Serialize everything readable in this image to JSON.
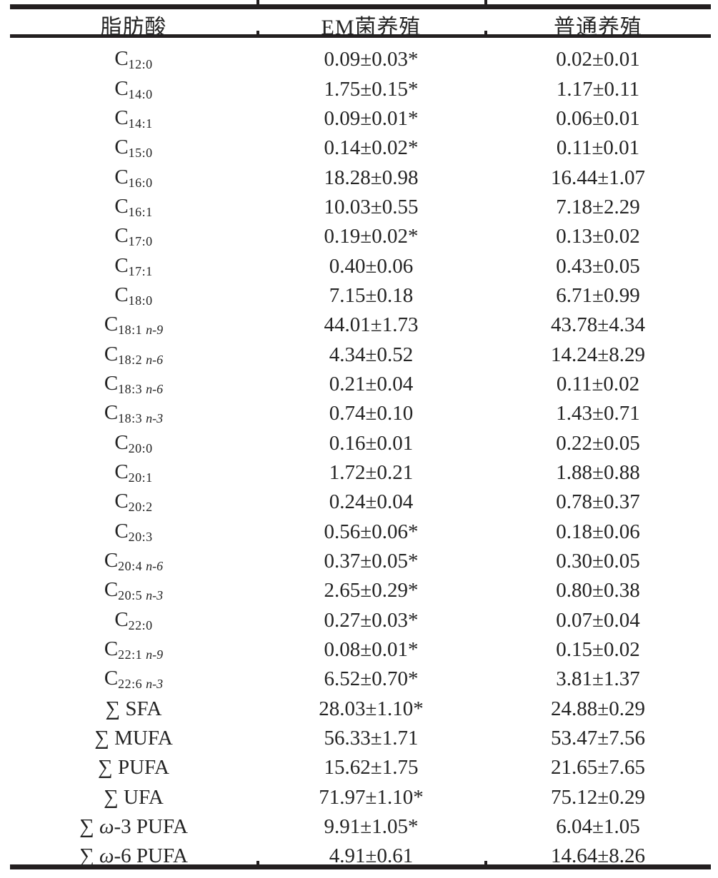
{
  "page": {
    "background": "#ffffff",
    "ink": "#242424",
    "rule_color": "#231f20"
  },
  "table": {
    "columns": [
      {
        "key": "label",
        "header": "脂肪酸"
      },
      {
        "key": "em",
        "header": "EM菌养殖"
      },
      {
        "key": "normal",
        "header": "普通养殖"
      }
    ],
    "significance_marker": "*",
    "rows": [
      {
        "label": [
          {
            "t": "C"
          },
          {
            "t": "12:0",
            "s": "sub"
          }
        ],
        "em": "0.09±0.03*",
        "normal": "0.02±0.01"
      },
      {
        "label": [
          {
            "t": "C"
          },
          {
            "t": "14:0",
            "s": "sub"
          }
        ],
        "em": "1.75±0.15*",
        "normal": "1.17±0.11"
      },
      {
        "label": [
          {
            "t": "C"
          },
          {
            "t": "14:1",
            "s": "sub"
          }
        ],
        "em": "0.09±0.01*",
        "normal": "0.06±0.01"
      },
      {
        "label": [
          {
            "t": "C"
          },
          {
            "t": "15:0",
            "s": "sub"
          }
        ],
        "em": "0.14±0.02*",
        "normal": "0.11±0.01"
      },
      {
        "label": [
          {
            "t": "C"
          },
          {
            "t": "16:0",
            "s": "sub"
          }
        ],
        "em": "18.28±0.98",
        "normal": "16.44±1.07"
      },
      {
        "label": [
          {
            "t": "C"
          },
          {
            "t": "16:1",
            "s": "sub"
          }
        ],
        "em": "10.03±0.55",
        "normal": "7.18±2.29"
      },
      {
        "label": [
          {
            "t": "C"
          },
          {
            "t": "17:0",
            "s": "sub"
          }
        ],
        "em": "0.19±0.02*",
        "normal": "0.13±0.02"
      },
      {
        "label": [
          {
            "t": "C"
          },
          {
            "t": "17:1",
            "s": "sub"
          }
        ],
        "em": "0.40±0.06",
        "normal": "0.43±0.05"
      },
      {
        "label": [
          {
            "t": "C"
          },
          {
            "t": "18:0",
            "s": "sub"
          }
        ],
        "em": "7.15±0.18",
        "normal": "6.71±0.99"
      },
      {
        "label": [
          {
            "t": "C"
          },
          {
            "t": "18:1 ",
            "s": "sub"
          },
          {
            "t": "n-9",
            "s": "subi"
          }
        ],
        "em": "44.01±1.73",
        "normal": "43.78±4.34"
      },
      {
        "label": [
          {
            "t": "C"
          },
          {
            "t": "18:2 ",
            "s": "sub"
          },
          {
            "t": "n-6",
            "s": "subi"
          }
        ],
        "em": "4.34±0.52",
        "normal": "14.24±8.29"
      },
      {
        "label": [
          {
            "t": "C"
          },
          {
            "t": "18:3 ",
            "s": "sub"
          },
          {
            "t": "n-6",
            "s": "subi"
          }
        ],
        "em": "0.21±0.04",
        "normal": "0.11±0.02"
      },
      {
        "label": [
          {
            "t": "C"
          },
          {
            "t": "18:3 ",
            "s": "sub"
          },
          {
            "t": "n-3",
            "s": "subi"
          }
        ],
        "em": "0.74±0.10",
        "normal": "1.43±0.71"
      },
      {
        "label": [
          {
            "t": "C"
          },
          {
            "t": "20:0",
            "s": "sub"
          }
        ],
        "em": "0.16±0.01",
        "normal": "0.22±0.05"
      },
      {
        "label": [
          {
            "t": "C"
          },
          {
            "t": "20:1",
            "s": "sub"
          }
        ],
        "em": "1.72±0.21",
        "normal": "1.88±0.88"
      },
      {
        "label": [
          {
            "t": "C"
          },
          {
            "t": "20:2",
            "s": "sub"
          }
        ],
        "em": "0.24±0.04",
        "normal": "0.78±0.37"
      },
      {
        "label": [
          {
            "t": "C"
          },
          {
            "t": "20:3",
            "s": "sub"
          }
        ],
        "em": "0.56±0.06*",
        "normal": "0.18±0.06"
      },
      {
        "label": [
          {
            "t": "C"
          },
          {
            "t": "20:4 ",
            "s": "sub"
          },
          {
            "t": "n-6",
            "s": "subi"
          }
        ],
        "em": "0.37±0.05*",
        "normal": "0.30±0.05"
      },
      {
        "label": [
          {
            "t": "C"
          },
          {
            "t": "20:5 ",
            "s": "sub"
          },
          {
            "t": "n-3",
            "s": "subi"
          }
        ],
        "em": "2.65±0.29*",
        "normal": "0.80±0.38"
      },
      {
        "label": [
          {
            "t": "C"
          },
          {
            "t": "22:0",
            "s": "sub"
          }
        ],
        "em": "0.27±0.03*",
        "normal": "0.07±0.04"
      },
      {
        "label": [
          {
            "t": "C"
          },
          {
            "t": "22:1 ",
            "s": "sub"
          },
          {
            "t": "n-9",
            "s": "subi"
          }
        ],
        "em": "0.08±0.01*",
        "normal": "0.15±0.02"
      },
      {
        "label": [
          {
            "t": "C"
          },
          {
            "t": "22:6 ",
            "s": "sub"
          },
          {
            "t": "n-3",
            "s": "subi"
          }
        ],
        "em": "6.52±0.70*",
        "normal": "3.81±1.37"
      },
      {
        "label": [
          {
            "t": "∑ SFA"
          }
        ],
        "em": "28.03±1.10*",
        "normal": "24.88±0.29"
      },
      {
        "label": [
          {
            "t": "∑ MUFA"
          }
        ],
        "em": "56.33±1.71",
        "normal": "53.47±7.56"
      },
      {
        "label": [
          {
            "t": "∑ PUFA"
          }
        ],
        "em": "15.62±1.75",
        "normal": "21.65±7.65"
      },
      {
        "label": [
          {
            "t": "∑ UFA"
          }
        ],
        "em": "71.97±1.10*",
        "normal": "75.12±0.29"
      },
      {
        "label": [
          {
            "t": "∑ "
          },
          {
            "t": "ω",
            "s": "i"
          },
          {
            "t": "-3 PUFA"
          }
        ],
        "em": "9.91±1.05*",
        "normal": "6.04±1.05"
      },
      {
        "label": [
          {
            "t": "∑ "
          },
          {
            "t": "ω",
            "s": "i"
          },
          {
            "t": "-6 PUFA"
          }
        ],
        "em": "4.91±0.61",
        "normal": "14.64±8.26"
      }
    ]
  }
}
